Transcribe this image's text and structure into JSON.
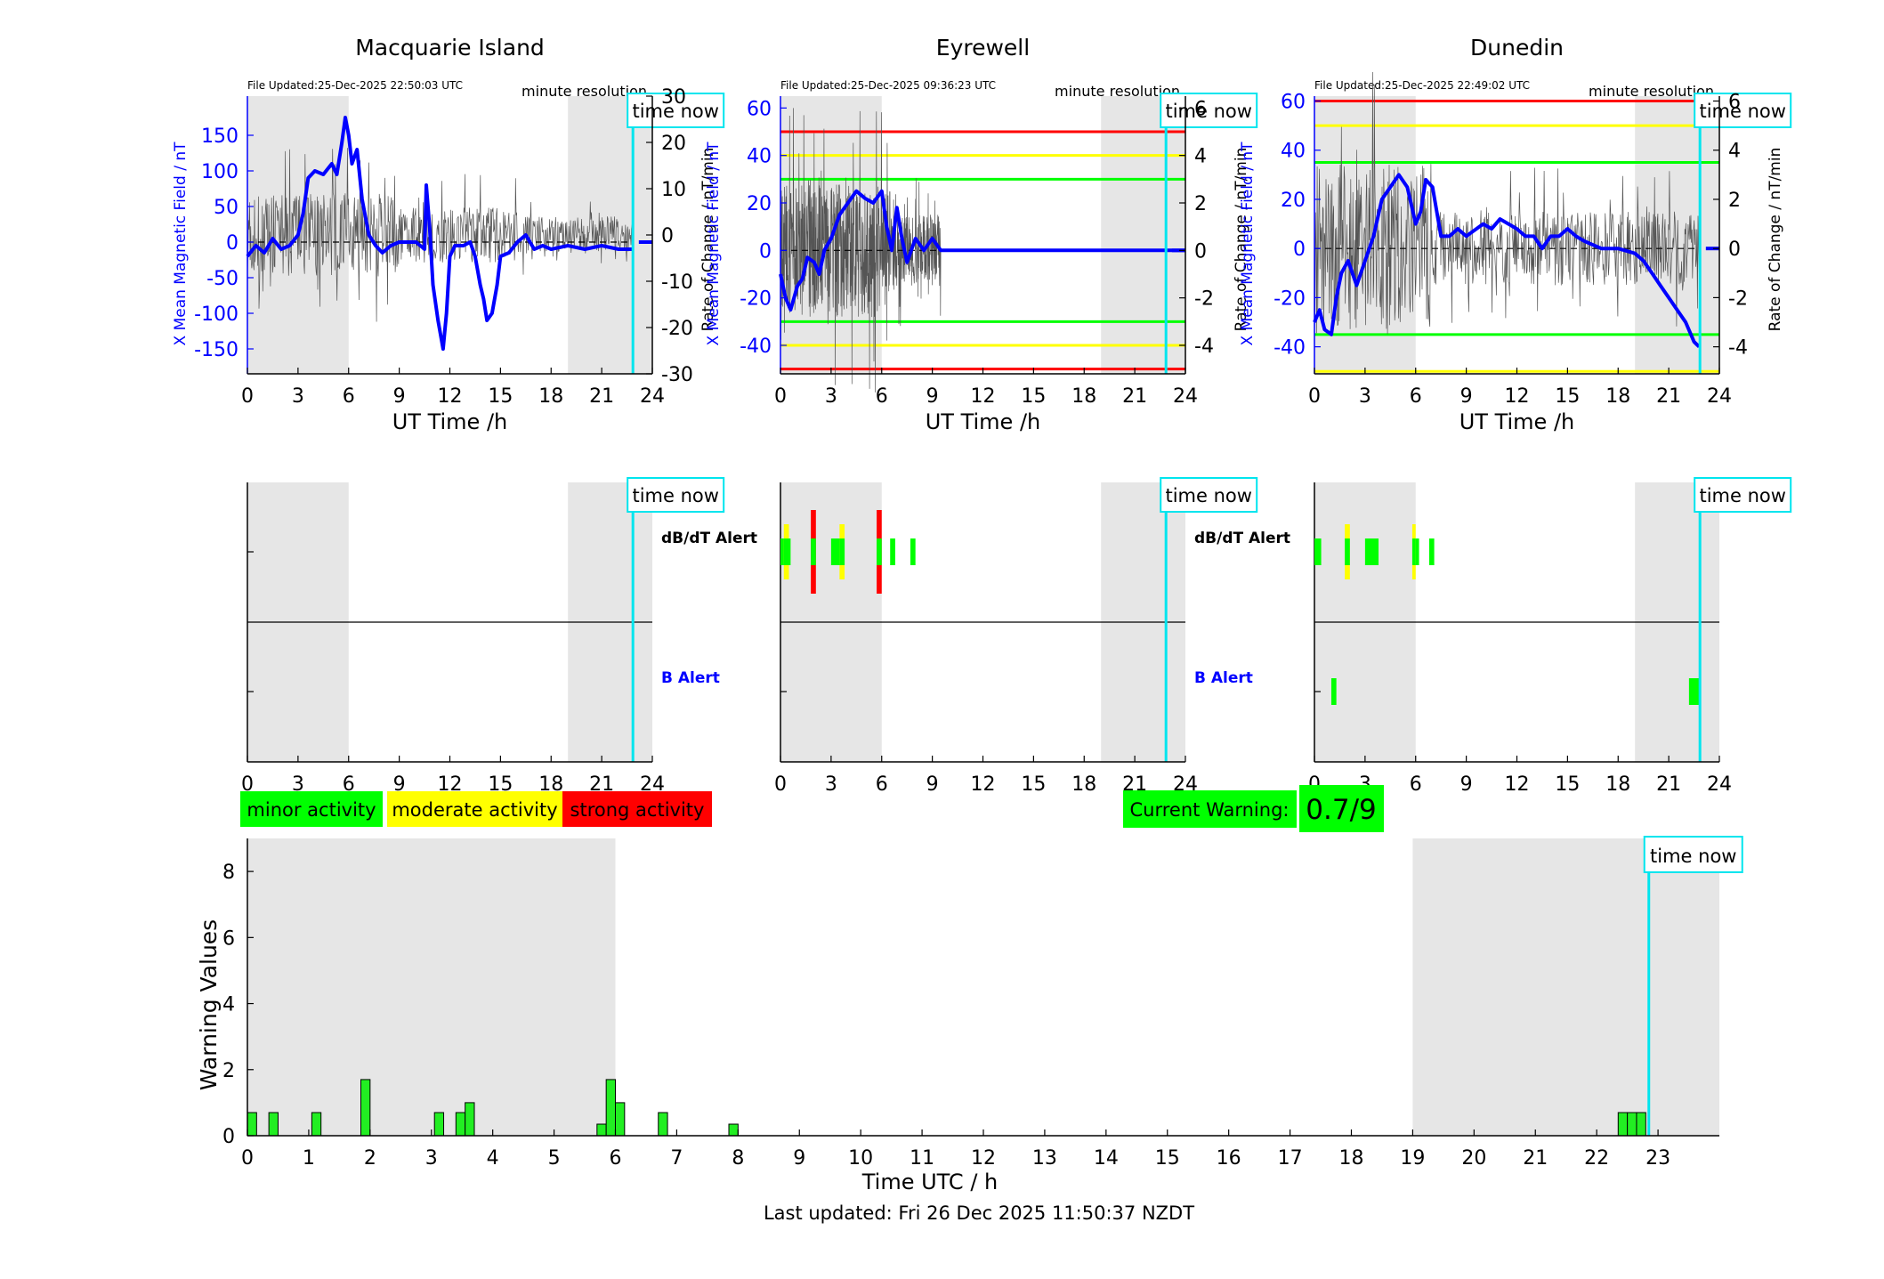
{
  "colors": {
    "mean_line": "#0000ff",
    "roc_line": "#555555",
    "night_shade": "#e6e6e6",
    "time_now": "#00e5ee",
    "minor": "#00ff00",
    "moderate": "#ffff00",
    "strong": "#ff0000",
    "warning_bar": "#22ee22"
  },
  "stations": [
    {
      "name": "Macquarie Island",
      "file_updated": "File Updated:25-Dec-2025 22:50:03 UTC",
      "resolution_label": "minute resolution",
      "time_now_label": "time now",
      "y_left_label": "X Mean Magnetic Field / nT",
      "y_right_label": "Rate of Change / nT/min",
      "x_label": "UT Time /h",
      "alert_dbdt_label": "dB/dT Alert",
      "alert_b_label": "B Alert",
      "ylim": [
        -185,
        205
      ],
      "yticks": [
        -150,
        -100,
        -50,
        0,
        50,
        100,
        150
      ],
      "y2lim": [
        -30,
        30
      ],
      "y2ticks": [
        -30,
        -20,
        -10,
        0,
        10,
        20,
        30
      ],
      "night_shading_hours": [
        [
          0,
          6
        ],
        [
          19,
          24
        ]
      ],
      "time_now_hour": 22.85,
      "threshold_lines": [],
      "mean_field": [
        [
          0,
          -20
        ],
        [
          0.5,
          -5
        ],
        [
          1,
          -15
        ],
        [
          1.5,
          5
        ],
        [
          2,
          -10
        ],
        [
          2.5,
          -5
        ],
        [
          3,
          10
        ],
        [
          3.3,
          40
        ],
        [
          3.6,
          90
        ],
        [
          4,
          100
        ],
        [
          4.5,
          95
        ],
        [
          5,
          110
        ],
        [
          5.3,
          95
        ],
        [
          5.6,
          140
        ],
        [
          5.8,
          175
        ],
        [
          6,
          150
        ],
        [
          6.2,
          110
        ],
        [
          6.5,
          130
        ],
        [
          6.8,
          60
        ],
        [
          7.2,
          10
        ],
        [
          7.6,
          -5
        ],
        [
          8,
          -15
        ],
        [
          8.5,
          -5
        ],
        [
          9,
          0
        ],
        [
          10,
          0
        ],
        [
          10.5,
          -10
        ],
        [
          10.6,
          80
        ],
        [
          10.8,
          20
        ],
        [
          11,
          -60
        ],
        [
          11.3,
          -110
        ],
        [
          11.6,
          -150
        ],
        [
          11.8,
          -100
        ],
        [
          12,
          -20
        ],
        [
          12.3,
          -5
        ],
        [
          12.8,
          -5
        ],
        [
          13.2,
          0
        ],
        [
          13.5,
          -20
        ],
        [
          13.8,
          -60
        ],
        [
          14,
          -80
        ],
        [
          14.2,
          -110
        ],
        [
          14.5,
          -100
        ],
        [
          14.8,
          -60
        ],
        [
          15,
          -20
        ],
        [
          15.5,
          -15
        ],
        [
          16,
          0
        ],
        [
          16.5,
          10
        ],
        [
          17,
          -10
        ],
        [
          17.5,
          -5
        ],
        [
          18,
          -10
        ],
        [
          19,
          -5
        ],
        [
          20,
          -10
        ],
        [
          21,
          -5
        ],
        [
          22,
          -10
        ],
        [
          22.85,
          -10
        ]
      ],
      "dbdt_bars": [],
      "b_bars": []
    },
    {
      "name": "Eyrewell",
      "file_updated": "File Updated:25-Dec-2025 09:36:23 UTC",
      "resolution_label": "minute resolution",
      "time_now_label": "time now",
      "y_left_label": "X Mean Magnetic Field / nT",
      "y_right_label": "Rate of Change / nT/min",
      "x_label": "UT Time /h",
      "alert_dbdt_label": "dB/dT Alert",
      "alert_b_label": "B Alert",
      "ylim": [
        -52,
        65
      ],
      "yticks": [
        -40,
        -20,
        0,
        20,
        40,
        60
      ],
      "y2lim": [
        -5.2,
        6.5
      ],
      "y2ticks": [
        -4,
        -2,
        0,
        2,
        4,
        6
      ],
      "night_shading_hours": [
        [
          0,
          6
        ],
        [
          19,
          24
        ]
      ],
      "time_now_hour": 22.85,
      "threshold_lines": [
        {
          "value": 50,
          "color": "strong"
        },
        {
          "value": 40,
          "color": "moderate"
        },
        {
          "value": 30,
          "color": "minor"
        },
        {
          "value": -30,
          "color": "minor"
        },
        {
          "value": -40,
          "color": "moderate"
        },
        {
          "value": -50,
          "color": "strong"
        }
      ],
      "mean_field": [
        [
          0,
          -10
        ],
        [
          0.3,
          -20
        ],
        [
          0.6,
          -25
        ],
        [
          1,
          -15
        ],
        [
          1.3,
          -12
        ],
        [
          1.6,
          -3
        ],
        [
          2,
          -5
        ],
        [
          2.3,
          -10
        ],
        [
          2.6,
          0
        ],
        [
          3,
          5
        ],
        [
          3.5,
          15
        ],
        [
          4,
          20
        ],
        [
          4.5,
          25
        ],
        [
          5,
          22
        ],
        [
          5.5,
          20
        ],
        [
          6,
          25
        ],
        [
          6.3,
          10
        ],
        [
          6.6,
          0
        ],
        [
          6.9,
          18
        ],
        [
          7.2,
          5
        ],
        [
          7.5,
          -5
        ],
        [
          8,
          5
        ],
        [
          8.5,
          0
        ],
        [
          9,
          5
        ],
        [
          9.5,
          0
        ],
        [
          10,
          0
        ],
        [
          24,
          0
        ]
      ],
      "dbdt_bars": [
        {
          "start": 0.0,
          "end": 0.6,
          "level": "minor"
        },
        {
          "start": 0.2,
          "end": 0.5,
          "level": "moderate"
        },
        {
          "start": 1.8,
          "end": 2.1,
          "level": "strong"
        },
        {
          "start": 3.0,
          "end": 3.8,
          "level": "minor"
        },
        {
          "start": 3.5,
          "end": 3.8,
          "level": "moderate"
        },
        {
          "start": 5.7,
          "end": 6.0,
          "level": "strong"
        },
        {
          "start": 6.5,
          "end": 6.8,
          "level": "minor"
        },
        {
          "start": 7.7,
          "end": 8.0,
          "level": "minor"
        }
      ],
      "b_bars": []
    },
    {
      "name": "Dunedin",
      "file_updated": "File Updated:25-Dec-2025 22:49:02 UTC",
      "resolution_label": "minute resolution",
      "time_now_label": "time now",
      "y_left_label": "X Mean Magnetic Field / nT",
      "y_right_label": "Rate of Change / nT/min",
      "x_label": "UT Time /h",
      "alert_dbdt_label": "",
      "alert_b_label": "",
      "ylim": [
        -51,
        62
      ],
      "yticks": [
        -40,
        -20,
        0,
        20,
        40,
        60
      ],
      "y2lim": [
        -5.1,
        6.2
      ],
      "y2ticks": [
        -4,
        -2,
        0,
        2,
        4,
        6
      ],
      "night_shading_hours": [
        [
          0,
          6
        ],
        [
          19,
          24
        ]
      ],
      "time_now_hour": 22.85,
      "threshold_lines": [
        {
          "value": 60,
          "color": "strong"
        },
        {
          "value": 50,
          "color": "moderate"
        },
        {
          "value": 35,
          "color": "minor"
        },
        {
          "value": -35,
          "color": "minor"
        },
        {
          "value": -50,
          "color": "moderate"
        }
      ],
      "mean_field": [
        [
          0,
          -30
        ],
        [
          0.3,
          -25
        ],
        [
          0.6,
          -33
        ],
        [
          1,
          -35
        ],
        [
          1.3,
          -20
        ],
        [
          1.6,
          -10
        ],
        [
          2,
          -5
        ],
        [
          2.5,
          -15
        ],
        [
          3,
          -5
        ],
        [
          3.5,
          5
        ],
        [
          4,
          20
        ],
        [
          4.5,
          25
        ],
        [
          5,
          30
        ],
        [
          5.5,
          25
        ],
        [
          6,
          10
        ],
        [
          6.3,
          15
        ],
        [
          6.6,
          28
        ],
        [
          7,
          25
        ],
        [
          7.5,
          5
        ],
        [
          8,
          5
        ],
        [
          8.5,
          8
        ],
        [
          9,
          5
        ],
        [
          10,
          10
        ],
        [
          10.5,
          8
        ],
        [
          11,
          12
        ],
        [
          11.5,
          10
        ],
        [
          12,
          8
        ],
        [
          12.5,
          5
        ],
        [
          13,
          5
        ],
        [
          13.5,
          0
        ],
        [
          14,
          5
        ],
        [
          14.5,
          5
        ],
        [
          15,
          8
        ],
        [
          15.5,
          5
        ],
        [
          16,
          3
        ],
        [
          17,
          0
        ],
        [
          18,
          0
        ],
        [
          19,
          -2
        ],
        [
          19.5,
          -5
        ],
        [
          20,
          -10
        ],
        [
          20.5,
          -15
        ],
        [
          21,
          -20
        ],
        [
          21.5,
          -25
        ],
        [
          22,
          -30
        ],
        [
          22.5,
          -38
        ],
        [
          22.8,
          -40
        ]
      ],
      "dbdt_bars": [
        {
          "start": 0.0,
          "end": 0.4,
          "level": "minor"
        },
        {
          "start": 1.8,
          "end": 2.1,
          "level": "moderate"
        },
        {
          "start": 3.0,
          "end": 3.8,
          "level": "minor"
        },
        {
          "start": 5.8,
          "end": 6.2,
          "level": "minor"
        },
        {
          "start": 5.8,
          "end": 6.0,
          "level": "moderate"
        },
        {
          "start": 6.8,
          "end": 7.1,
          "level": "minor"
        }
      ],
      "b_bars": [
        {
          "start": 1.0,
          "end": 1.3,
          "level": "minor"
        },
        {
          "start": 22.2,
          "end": 22.9,
          "level": "minor"
        }
      ]
    }
  ],
  "legend": {
    "minor": "minor activity",
    "moderate": "moderate activity",
    "strong": "strong activity"
  },
  "current_warning": {
    "label": "Current Warning:",
    "value": "0.7/9"
  },
  "warning_chart": {
    "ylabel": "Warning Values",
    "xlabel": "Time UTC / h",
    "time_now_label": "time now",
    "time_now_hour": 22.85,
    "ylim": [
      0,
      9
    ],
    "yticks": [
      0,
      2,
      4,
      6,
      8
    ],
    "xlim": [
      0,
      24
    ],
    "xticks": [
      0,
      1,
      2,
      3,
      4,
      5,
      6,
      7,
      8,
      9,
      10,
      11,
      12,
      13,
      14,
      15,
      16,
      17,
      18,
      19,
      20,
      21,
      22,
      23
    ],
    "night_shading_hours": [
      [
        0,
        6
      ],
      [
        19,
        24
      ]
    ],
    "bar_width_h": 0.15,
    "bars": [
      {
        "h": 0.0,
        "v": 0.7
      },
      {
        "h": 0.35,
        "v": 0.7
      },
      {
        "h": 1.05,
        "v": 0.7
      },
      {
        "h": 1.85,
        "v": 1.7
      },
      {
        "h": 3.05,
        "v": 0.7
      },
      {
        "h": 3.4,
        "v": 0.7
      },
      {
        "h": 3.55,
        "v": 1.0
      },
      {
        "h": 5.7,
        "v": 0.35
      },
      {
        "h": 5.85,
        "v": 1.7
      },
      {
        "h": 6.0,
        "v": 1.0
      },
      {
        "h": 6.7,
        "v": 0.7
      },
      {
        "h": 7.85,
        "v": 0.35
      },
      {
        "h": 22.35,
        "v": 0.7
      },
      {
        "h": 22.5,
        "v": 0.7
      },
      {
        "h": 22.65,
        "v": 0.7
      }
    ]
  },
  "footer": "Last updated: Fri 26 Dec 2025 11:50:37 NZDT"
}
